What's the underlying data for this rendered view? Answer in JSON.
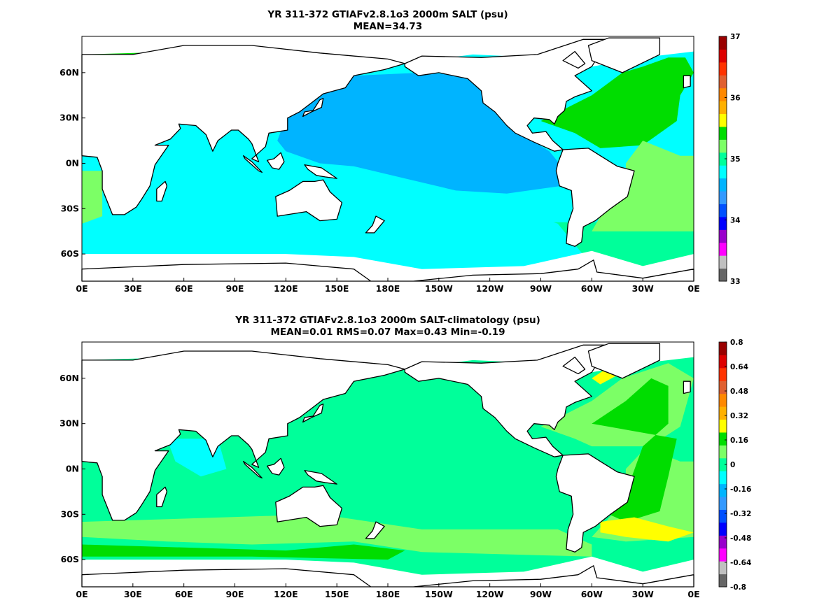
{
  "colors": {
    "land": "#ffffff",
    "coast": "#000000",
    "palette": [
      "#666666",
      "#c0c0c0",
      "#ff00ff",
      "#9900cc",
      "#0000ff",
      "#0050ff",
      "#3399ff",
      "#00b4ff",
      "#00ffff",
      "#00ff9a",
      "#7cff66",
      "#00dd00",
      "#ffff00",
      "#ffb000",
      "#ff8800",
      "#e06030",
      "#ff3300",
      "#dd0000",
      "#990000"
    ]
  },
  "panels": [
    {
      "title_line1": "YR 311-372 GTIAFv2.8.1o3 2000m SALT (psu)",
      "title_line2": "MEAN=34.73",
      "x_ticks": [
        "0E",
        "30E",
        "60E",
        "90E",
        "120E",
        "150E",
        "180E",
        "150W",
        "120W",
        "90W",
        "60W",
        "30W",
        "0E"
      ],
      "y_ticks": [
        "60N",
        "30N",
        "0N",
        "30S",
        "60S"
      ],
      "colorbar_labels": [
        "37",
        "36",
        "35",
        "34",
        "33"
      ],
      "colorbar_range": [
        33,
        37
      ]
    },
    {
      "title_line1": "YR 311-372 GTIAFv2.8.1o3 2000m SALT-climatology (psu)",
      "title_line2": "MEAN=0.01   RMS=0.07   Max=0.43   Min=-0.19",
      "x_ticks": [
        "0E",
        "30E",
        "60E",
        "90E",
        "120E",
        "150E",
        "180E",
        "150W",
        "120W",
        "90W",
        "60W",
        "30W",
        "0E"
      ],
      "y_ticks": [
        "60N",
        "30N",
        "0N",
        "30S",
        "60S"
      ],
      "colorbar_labels": [
        "0.8",
        "0.64",
        "0.48",
        "0.32",
        "0.16",
        "0",
        "-0.16",
        "-0.32",
        "-0.48",
        "-0.64",
        "-0.8"
      ],
      "colorbar_range": [
        -0.8,
        0.8
      ]
    }
  ]
}
